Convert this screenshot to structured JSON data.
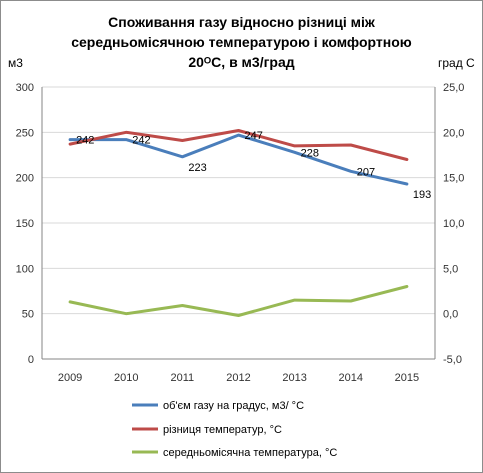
{
  "chart_data": {
    "type": "line",
    "title_lines": [
      "Споживання газу відносно  різниці між",
      "середньомісячною температурою і комфортною",
      "20ᴼС, в м3/град"
    ],
    "categories": [
      "2009",
      "2010",
      "2011",
      "2012",
      "2013",
      "2014",
      "2015"
    ],
    "y_left": {
      "label": "м3",
      "min": 0,
      "max": 300,
      "step": 50,
      "tick_labels": [
        "0",
        "50",
        "100",
        "150",
        "200",
        "250",
        "300"
      ]
    },
    "y_right": {
      "label": "град С",
      "min": -5,
      "max": 25,
      "step": 5,
      "tick_labels": [
        "-5,0",
        "0,0",
        "5,0",
        "10,0",
        "15,0",
        "20,0",
        "25,0"
      ]
    },
    "series": [
      {
        "name": "об'єм газу на градус, м3/ °С",
        "axis": "left",
        "color": "#4a7ebb",
        "values": [
          242,
          242,
          223,
          247,
          228,
          207,
          193
        ],
        "data_labels": [
          "242",
          "242",
          "223",
          "247",
          "228",
          "207",
          "193"
        ]
      },
      {
        "name": "різниця температур, °С",
        "axis": "right",
        "color": "#be4b48",
        "values": [
          18.7,
          20.0,
          19.1,
          20.2,
          18.5,
          18.6,
          17.0
        ]
      },
      {
        "name": "середньомісячна температура, °С",
        "axis": "right",
        "color": "#98b954",
        "values": [
          1.3,
          0.0,
          0.9,
          -0.2,
          1.5,
          1.4,
          3.0
        ]
      }
    ],
    "grid": true,
    "legend_position": "bottom"
  }
}
